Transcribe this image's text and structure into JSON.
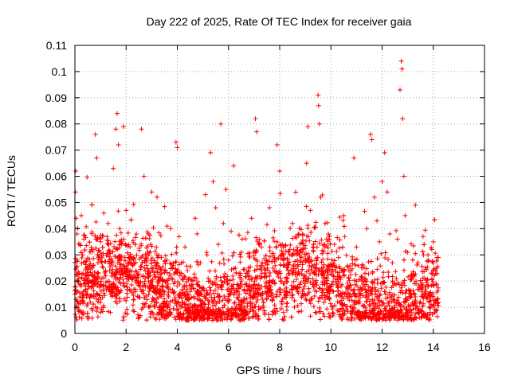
{
  "chart_data": {
    "type": "scatter",
    "title": "Day 222 of 2025, Rate Of TEC Index for receiver gaia",
    "xlabel": "GPS time / hours",
    "ylabel": "ROTI / TECUs",
    "xlim": [
      0,
      16
    ],
    "ylim": [
      0,
      0.11
    ],
    "x_ticks": [
      "0",
      "2",
      "4",
      "6",
      "8",
      "10",
      "12",
      "14",
      "16"
    ],
    "y_ticks": [
      "0",
      "0.01",
      "0.02",
      "0.03",
      "0.04",
      "0.05",
      "0.06",
      "0.07",
      "0.08",
      "0.09",
      "0.1",
      "0.11"
    ],
    "grid": true,
    "marker": "plus",
    "series": [
      {
        "color": "#ff0000",
        "points": [
          [
            0.0,
            0.015
          ],
          [
            0.02,
            0.054
          ],
          [
            0.03,
            0.062
          ],
          [
            0.05,
            0.044
          ],
          [
            0.08,
            0.038
          ],
          [
            0.1,
            0.028
          ],
          [
            0.15,
            0.021
          ],
          [
            0.2,
            0.034
          ],
          [
            0.25,
            0.045
          ],
          [
            0.3,
            0.03
          ],
          [
            0.35,
            0.036
          ],
          [
            0.4,
            0.019
          ],
          [
            0.45,
            0.025
          ],
          [
            0.5,
            0.017
          ],
          [
            0.55,
            0.022
          ],
          [
            0.6,
            0.012
          ],
          [
            0.7,
            0.02
          ],
          [
            0.8,
            0.076
          ],
          [
            0.85,
            0.067
          ],
          [
            0.9,
            0.027
          ],
          [
            1.0,
            0.031
          ],
          [
            1.1,
            0.018
          ],
          [
            1.2,
            0.024
          ],
          [
            1.3,
            0.042
          ],
          [
            1.4,
            0.015
          ],
          [
            1.5,
            0.063
          ],
          [
            1.6,
            0.078
          ],
          [
            1.65,
            0.084
          ],
          [
            1.7,
            0.072
          ],
          [
            1.75,
            0.029
          ],
          [
            1.8,
            0.035
          ],
          [
            1.9,
            0.079
          ],
          [
            2.0,
            0.047
          ],
          [
            2.1,
            0.021
          ],
          [
            2.2,
            0.028
          ],
          [
            2.3,
            0.013
          ],
          [
            2.4,
            0.038
          ],
          [
            2.5,
            0.019
          ],
          [
            2.6,
            0.078
          ],
          [
            2.7,
            0.06
          ],
          [
            2.8,
            0.026
          ],
          [
            3.0,
            0.054
          ],
          [
            3.2,
            0.03
          ],
          [
            3.4,
            0.018
          ],
          [
            3.6,
            0.041
          ],
          [
            3.8,
            0.025
          ],
          [
            3.95,
            0.073
          ],
          [
            4.0,
            0.071
          ],
          [
            4.1,
            0.022
          ],
          [
            4.3,
            0.033
          ],
          [
            4.5,
            0.016
          ],
          [
            4.7,
            0.044
          ],
          [
            4.9,
            0.027
          ],
          [
            5.1,
            0.053
          ],
          [
            5.3,
            0.069
          ],
          [
            5.4,
            0.058
          ],
          [
            5.5,
            0.048
          ],
          [
            5.6,
            0.034
          ],
          [
            5.7,
            0.08
          ],
          [
            5.8,
            0.042
          ],
          [
            5.9,
            0.055
          ],
          [
            6.0,
            0.028
          ],
          [
            6.1,
            0.039
          ],
          [
            6.2,
            0.064
          ],
          [
            6.3,
            0.023
          ],
          [
            6.5,
            0.031
          ],
          [
            6.7,
            0.019
          ],
          [
            6.9,
            0.044
          ],
          [
            7.05,
            0.082
          ],
          [
            7.1,
            0.077
          ],
          [
            7.2,
            0.036
          ],
          [
            7.4,
            0.025
          ],
          [
            7.6,
            0.048
          ],
          [
            7.8,
            0.029
          ],
          [
            7.9,
            0.072
          ],
          [
            8.0,
            0.062
          ],
          [
            8.1,
            0.034
          ],
          [
            8.3,
            0.021
          ],
          [
            8.5,
            0.042
          ],
          [
            8.7,
            0.018
          ],
          [
            8.9,
            0.038
          ],
          [
            9.05,
            0.065
          ],
          [
            9.1,
            0.079
          ],
          [
            9.2,
            0.047
          ],
          [
            9.3,
            0.033
          ],
          [
            9.5,
            0.091
          ],
          [
            9.52,
            0.087
          ],
          [
            9.55,
            0.08
          ],
          [
            9.6,
            0.052
          ],
          [
            9.7,
            0.024
          ],
          [
            9.9,
            0.038
          ],
          [
            10.1,
            0.016
          ],
          [
            10.3,
            0.029
          ],
          [
            10.5,
            0.045
          ],
          [
            10.7,
            0.021
          ],
          [
            10.9,
            0.067
          ],
          [
            11.0,
            0.033
          ],
          [
            11.2,
            0.025
          ],
          [
            11.4,
            0.04
          ],
          [
            11.55,
            0.076
          ],
          [
            11.6,
            0.074
          ],
          [
            11.7,
            0.052
          ],
          [
            11.8,
            0.043
          ],
          [
            11.9,
            0.035
          ],
          [
            12.0,
            0.058
          ],
          [
            12.1,
            0.069
          ],
          [
            12.2,
            0.054
          ],
          [
            12.3,
            0.038
          ],
          [
            12.4,
            0.027
          ],
          [
            12.5,
            0.019
          ],
          [
            12.6,
            0.036
          ],
          [
            12.7,
            0.093
          ],
          [
            12.75,
            0.104
          ],
          [
            12.78,
            0.101
          ],
          [
            12.8,
            0.082
          ],
          [
            12.85,
            0.06
          ],
          [
            12.9,
            0.045
          ],
          [
            13.0,
            0.031
          ],
          [
            13.2,
            0.022
          ],
          [
            13.3,
            0.049
          ],
          [
            13.4,
            0.027
          ],
          [
            13.6,
            0.037
          ],
          [
            13.8,
            0.018
          ],
          [
            14.0,
            0.035
          ],
          [
            14.1,
            0.024
          ],
          [
            14.15,
            0.013
          ],
          [
            14.2,
            0.029
          ]
        ]
      }
    ],
    "dense_band": {
      "x_range": [
        0,
        14.2
      ],
      "typical_y_range": [
        0.006,
        0.035
      ]
    }
  }
}
